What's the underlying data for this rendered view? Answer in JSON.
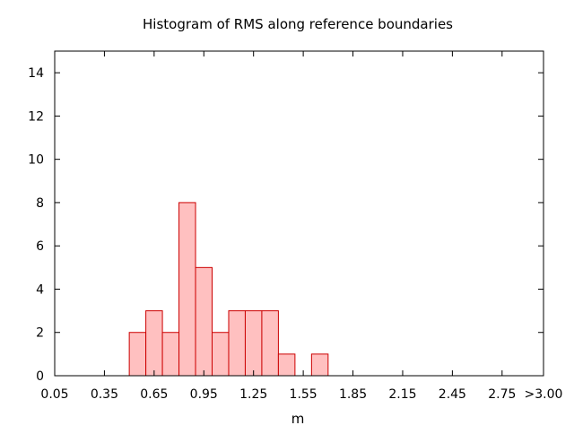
{
  "chart_data": {
    "type": "bar",
    "title": "Histogram of RMS along reference boundaries",
    "xlabel": "m",
    "ylabel": "",
    "bin_width": 0.1,
    "xlim": [
      0.05,
      3.0
    ],
    "ylim": [
      0,
      15
    ],
    "x_ticks": [
      {
        "value": 0.05,
        "label": "0.05"
      },
      {
        "value": 0.35,
        "label": "0.35"
      },
      {
        "value": 0.65,
        "label": "0.65"
      },
      {
        "value": 0.95,
        "label": "0.95"
      },
      {
        "value": 1.25,
        "label": "1.25"
      },
      {
        "value": 1.55,
        "label": "1.55"
      },
      {
        "value": 1.85,
        "label": "1.85"
      },
      {
        "value": 2.15,
        "label": "2.15"
      },
      {
        "value": 2.45,
        "label": "2.45"
      },
      {
        "value": 2.75,
        "label": "2.75"
      },
      {
        "value": 3.0,
        "label": ">3.00"
      }
    ],
    "y_ticks": [
      {
        "value": 0,
        "label": "0"
      },
      {
        "value": 2,
        "label": "2"
      },
      {
        "value": 4,
        "label": "4"
      },
      {
        "value": 6,
        "label": "6"
      },
      {
        "value": 8,
        "label": "8"
      },
      {
        "value": 10,
        "label": "10"
      },
      {
        "value": 12,
        "label": "12"
      },
      {
        "value": 14,
        "label": "14"
      }
    ],
    "bins": [
      {
        "x": 0.55,
        "count": 2
      },
      {
        "x": 0.65,
        "count": 3
      },
      {
        "x": 0.75,
        "count": 2
      },
      {
        "x": 0.85,
        "count": 8
      },
      {
        "x": 0.95,
        "count": 5
      },
      {
        "x": 1.05,
        "count": 2
      },
      {
        "x": 1.15,
        "count": 3
      },
      {
        "x": 1.25,
        "count": 3
      },
      {
        "x": 1.35,
        "count": 3
      },
      {
        "x": 1.45,
        "count": 1
      },
      {
        "x": 1.65,
        "count": 1
      }
    ],
    "bar_fill": "#ffc0c0",
    "bar_stroke": "#cc0000",
    "grid": false,
    "legend": "none"
  }
}
